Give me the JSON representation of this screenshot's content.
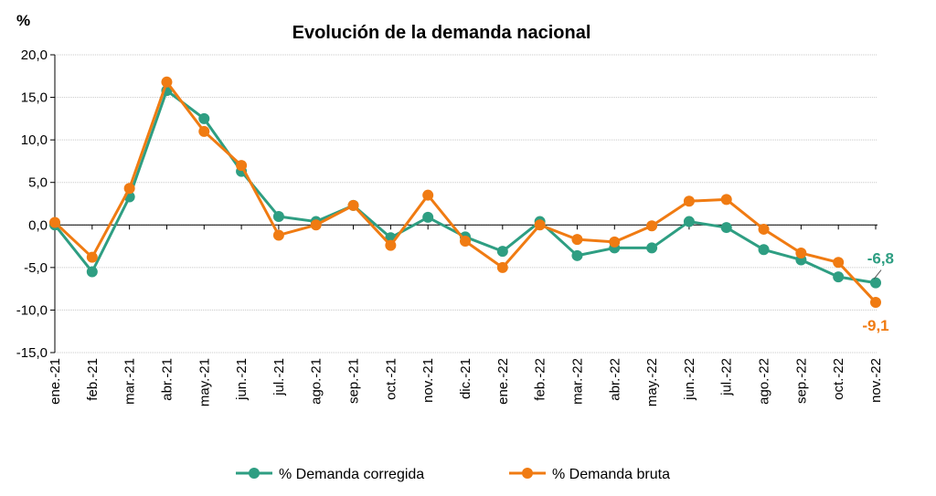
{
  "chart_data": {
    "type": "line",
    "title": "Evolución de la demanda nacional",
    "ylabel": "%",
    "xlabel": "",
    "ylim": [
      -15,
      20
    ],
    "y_ticks": [
      "20,0",
      "15,0",
      "10,0",
      "5,0",
      "0,0",
      "-5,0",
      "-10,0",
      "-15,0"
    ],
    "y_tick_values": [
      20,
      15,
      10,
      5,
      0,
      -5,
      -10,
      -15
    ],
    "grid": true,
    "legend": "bottom",
    "categories": [
      "ene.-21",
      "feb.-21",
      "mar.-21",
      "abr.-21",
      "may.-21",
      "jun.-21",
      "jul.-21",
      "ago.-21",
      "sep.-21",
      "oct.-21",
      "nov.-21",
      "dic.-21",
      "ene.-22",
      "feb.-22",
      "mar.-22",
      "abr.-22",
      "may.-22",
      "jun.-22",
      "jul.-22",
      "ago.-22",
      "sep.-22",
      "oct.-22",
      "nov.-22"
    ],
    "series": [
      {
        "name": "% Demanda corregida",
        "color": "#2e9e82",
        "values": [
          0.0,
          -5.5,
          3.3,
          15.8,
          12.5,
          6.3,
          1.0,
          0.4,
          2.3,
          -1.5,
          0.9,
          -1.4,
          -3.1,
          0.4,
          -3.6,
          -2.7,
          -2.7,
          0.4,
          -0.3,
          -2.9,
          -4.1,
          -6.1,
          -6.8
        ],
        "end_label": "-6,8"
      },
      {
        "name": "% Demanda bruta",
        "color": "#f07b12",
        "values": [
          0.3,
          -3.8,
          4.3,
          16.8,
          11.0,
          7.0,
          -1.2,
          0.0,
          2.3,
          -2.4,
          3.5,
          -1.9,
          -5.0,
          0.0,
          -1.7,
          -2.0,
          -0.1,
          2.8,
          3.0,
          -0.5,
          -3.3,
          -4.4,
          -9.1
        ],
        "end_label": "-9,1"
      }
    ]
  }
}
